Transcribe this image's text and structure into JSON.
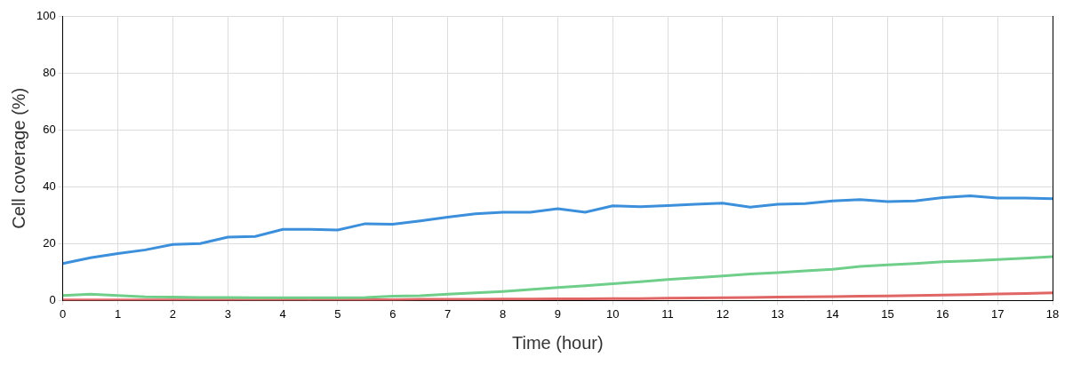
{
  "chart_data": {
    "type": "line",
    "x_label": "Time (hour)",
    "y_label": "Cell coverage (%)",
    "x": [
      0,
      0.5,
      1,
      1.5,
      2,
      2.5,
      3,
      3.5,
      4,
      4.5,
      5,
      5.5,
      6,
      6.5,
      7,
      7.5,
      8,
      8.5,
      9,
      9.5,
      10,
      10.5,
      11,
      11.5,
      12,
      12.5,
      13,
      13.5,
      14,
      14.5,
      15,
      15.5,
      16,
      16.5,
      17,
      17.5,
      18
    ],
    "series": [
      {
        "color": "#3b8fdb",
        "values": [
          13,
          15,
          16.5,
          17.8,
          19.7,
          20,
          22.3,
          22.5,
          25,
          25,
          24.8,
          27,
          26.8,
          28,
          29.3,
          30.5,
          31,
          31,
          32.3,
          31,
          33.3,
          33,
          33.4,
          33.8,
          34.2,
          32.8,
          33.8,
          34.1,
          35,
          35.5,
          34.8,
          35,
          36.2,
          36.8,
          36,
          36,
          35.8
        ]
      },
      {
        "color": "#6fcf8a",
        "values": [
          1.8,
          2.2,
          1.8,
          1.3,
          1.2,
          1.1,
          1.1,
          1.0,
          1.0,
          1.0,
          1.0,
          1.1,
          1.5,
          1.7,
          2.2,
          2.7,
          3.2,
          3.9,
          4.6,
          5.2,
          5.9,
          6.6,
          7.4,
          8.0,
          8.6,
          9.3,
          9.8,
          10.4,
          11.0,
          12.0,
          12.5,
          13.0,
          13.6,
          13.9,
          14.4,
          14.9,
          15.4
        ]
      },
      {
        "color": "#e06666",
        "values": [
          0.2,
          0.2,
          0.2,
          0.2,
          0.2,
          0.2,
          0.2,
          0.2,
          0.3,
          0.3,
          0.3,
          0.3,
          0.3,
          0.4,
          0.4,
          0.4,
          0.5,
          0.5,
          0.6,
          0.6,
          0.7,
          0.7,
          0.8,
          0.9,
          1.0,
          1.1,
          1.2,
          1.3,
          1.4,
          1.5,
          1.6,
          1.8,
          1.9,
          2.1,
          2.3,
          2.5,
          2.7
        ]
      }
    ],
    "xlim": [
      0,
      18
    ],
    "xticks": [
      0,
      1,
      2,
      3,
      4,
      5,
      6,
      7,
      8,
      9,
      10,
      11,
      12,
      13,
      14,
      15,
      16,
      17,
      18
    ],
    "ylim": [
      0,
      100
    ],
    "yticks": [
      0,
      20,
      40,
      60,
      80,
      100
    ],
    "grid": true,
    "marker": "none",
    "line_style": "solid"
  }
}
